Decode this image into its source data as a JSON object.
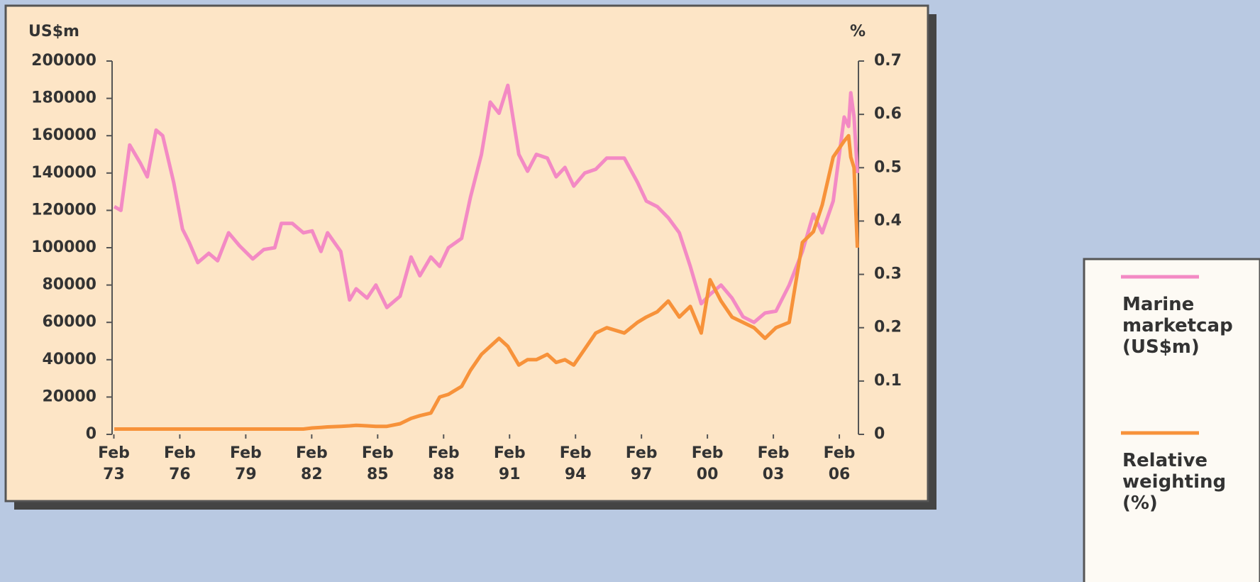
{
  "chart_data": {
    "type": "line",
    "ylabel": "US$m",
    "y2label": "%",
    "x": [
      1973.1,
      1973.4,
      1973.8,
      1974.3,
      1974.6,
      1975.0,
      1975.3,
      1975.8,
      1976.2,
      1976.5,
      1976.9,
      1977.4,
      1977.8,
      1978.3,
      1978.8,
      1979.4,
      1979.9,
      1980.4,
      1980.7,
      1981.2,
      1981.7,
      1982.1,
      1982.5,
      1982.8,
      1983.4,
      1983.8,
      1984.1,
      1984.6,
      1985.0,
      1985.5,
      1986.1,
      1986.6,
      1987.0,
      1987.5,
      1987.9,
      1988.3,
      1988.9,
      1989.3,
      1989.8,
      1990.2,
      1990.6,
      1991.0,
      1991.5,
      1991.9,
      1992.3,
      1992.8,
      1993.2,
      1993.6,
      1994.0,
      1994.5,
      1995.0,
      1995.5,
      1996.3,
      1996.9,
      1997.3,
      1997.8,
      1998.3,
      1998.8,
      1999.3,
      1999.8,
      2000.2,
      2000.7,
      2001.2,
      2001.7,
      2002.2,
      2002.7,
      2003.2,
      2003.8,
      2004.4,
      2004.9,
      2005.3,
      2005.8,
      2006.3,
      2006.5,
      2006.6,
      2006.75,
      2006.9
    ],
    "series": [
      {
        "name": "Marine marketcap (US$m)",
        "color": "#f38ac4",
        "axis": "y",
        "values": [
          122000,
          120000,
          155000,
          145000,
          138000,
          163000,
          160000,
          135000,
          110000,
          103000,
          92000,
          97000,
          93000,
          108000,
          101000,
          94000,
          99000,
          100000,
          113000,
          113000,
          108000,
          109000,
          98000,
          108000,
          98000,
          72000,
          78000,
          73000,
          80000,
          68000,
          74000,
          95000,
          85000,
          95000,
          90000,
          100000,
          105000,
          127000,
          150000,
          178000,
          172000,
          187000,
          150000,
          141000,
          150000,
          148000,
          138000,
          143000,
          133000,
          140000,
          142000,
          148000,
          148000,
          135000,
          125000,
          122000,
          116000,
          108000,
          90000,
          70000,
          75000,
          80000,
          73000,
          63000,
          60000,
          65000,
          66000,
          80000,
          98000,
          118000,
          108000,
          125000,
          170000,
          165000,
          183000,
          170000,
          140000
        ]
      },
      {
        "name": "Relative weighting (%)",
        "color": "#f7923a",
        "axis": "y2",
        "values": [
          0.01,
          0.01,
          0.01,
          0.01,
          0.01,
          0.01,
          0.01,
          0.01,
          0.01,
          0.01,
          0.01,
          0.01,
          0.01,
          0.01,
          0.01,
          0.01,
          0.01,
          0.01,
          0.01,
          0.01,
          0.01,
          0.012,
          0.013,
          0.014,
          0.015,
          0.016,
          0.017,
          0.016,
          0.015,
          0.015,
          0.02,
          0.03,
          0.035,
          0.04,
          0.07,
          0.075,
          0.09,
          0.12,
          0.15,
          0.165,
          0.18,
          0.165,
          0.13,
          0.14,
          0.14,
          0.15,
          0.135,
          0.14,
          0.13,
          0.16,
          0.19,
          0.2,
          0.19,
          0.21,
          0.22,
          0.23,
          0.25,
          0.22,
          0.24,
          0.19,
          0.29,
          0.25,
          0.22,
          0.21,
          0.2,
          0.18,
          0.2,
          0.21,
          0.36,
          0.38,
          0.43,
          0.52,
          0.55,
          0.56,
          0.52,
          0.5,
          0.35
        ]
      }
    ],
    "xlim": [
      1973.0,
      2006.95
    ],
    "xticks": [
      {
        "value": 1973.08,
        "label": "Feb 73"
      },
      {
        "value": 1976.08,
        "label": "Feb 76"
      },
      {
        "value": 1979.08,
        "label": "Feb 79"
      },
      {
        "value": 1982.08,
        "label": "Feb 82"
      },
      {
        "value": 1985.08,
        "label": "Feb 85"
      },
      {
        "value": 1988.08,
        "label": "Feb 88"
      },
      {
        "value": 1991.08,
        "label": "Feb 91"
      },
      {
        "value": 1994.08,
        "label": "Feb 94"
      },
      {
        "value": 1997.08,
        "label": "Feb 97"
      },
      {
        "value": 2000.08,
        "label": "Feb 00"
      },
      {
        "value": 2003.08,
        "label": "Feb 03"
      },
      {
        "value": 2006.08,
        "label": "Feb 06"
      }
    ],
    "ylim": [
      0,
      200000
    ],
    "yticks": [
      0,
      20000,
      40000,
      60000,
      80000,
      100000,
      120000,
      140000,
      160000,
      180000,
      200000
    ],
    "y2lim": [
      0,
      0.7
    ],
    "y2ticks": [
      0,
      0.1,
      0.2,
      0.3,
      0.4,
      0.5,
      0.6,
      0.7
    ],
    "grid": false
  }
}
